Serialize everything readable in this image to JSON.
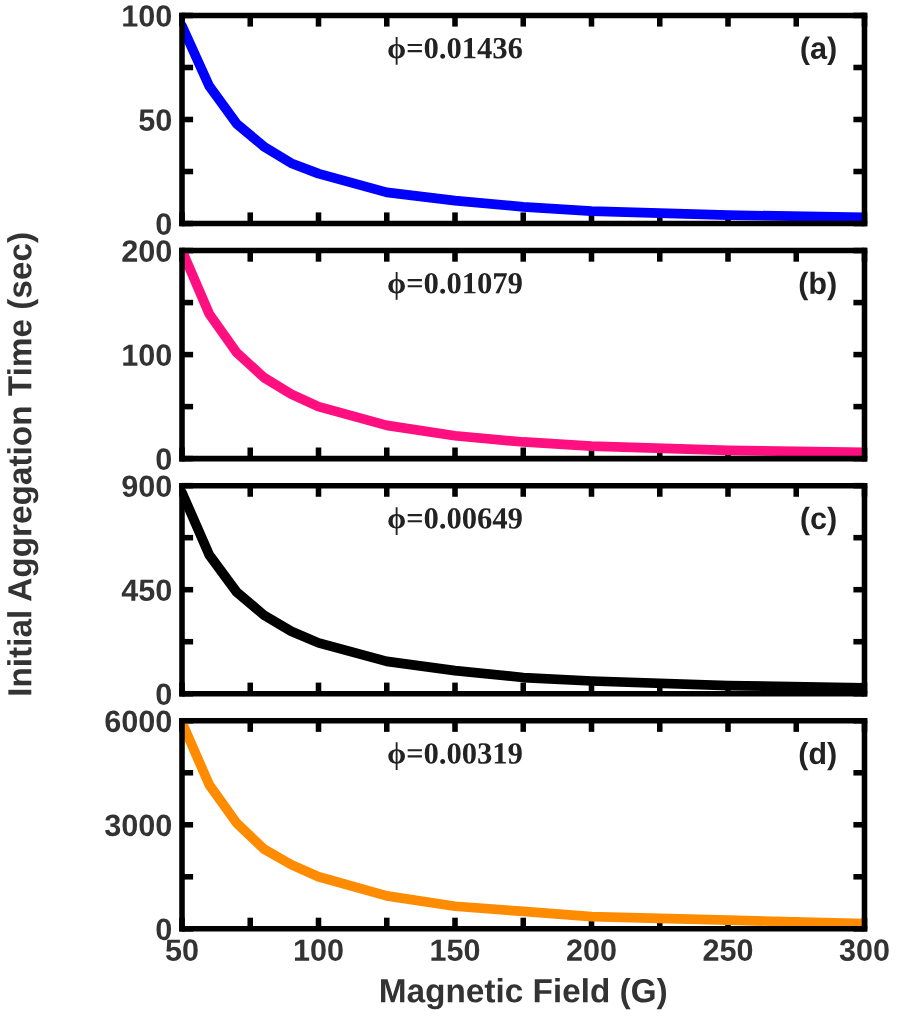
{
  "chart_data": [
    {
      "type": "line",
      "ylabel": "Initial Aggregation Time (sec)",
      "annotations": [
        "ϕ=0.01436",
        "(a)"
      ],
      "x": [
        50,
        60,
        70,
        80,
        90,
        100,
        125,
        150,
        175,
        200,
        250,
        300
      ],
      "series": [
        {
          "color": "#0000ff",
          "values": [
            95,
            66,
            48,
            37,
            29,
            24,
            15,
            11,
            8,
            6,
            4,
            3
          ]
        }
      ],
      "xlim": [
        50,
        300
      ],
      "xticks": [
        {
          "value": 50,
          "label": null
        },
        {
          "value": 75,
          "label": null
        },
        {
          "value": 100,
          "label": null
        },
        {
          "value": 125,
          "label": null
        },
        {
          "value": 150,
          "label": null
        },
        {
          "value": 175,
          "label": null
        },
        {
          "value": 200,
          "label": null
        },
        {
          "value": 225,
          "label": null
        },
        {
          "value": 250,
          "label": null
        },
        {
          "value": 275,
          "label": null
        },
        {
          "value": 300,
          "label": null
        }
      ],
      "ylim": [
        0,
        100
      ],
      "yticks": [
        0,
        {
          "value": 25,
          "label": null
        },
        50,
        {
          "value": 75,
          "label": null
        },
        100
      ],
      "tick_labels": "y"
    },
    {
      "type": "line",
      "annotations": [
        "ϕ=0.01079",
        "(b)"
      ],
      "x": [
        50,
        60,
        70,
        80,
        90,
        100,
        125,
        150,
        175,
        200,
        250,
        300
      ],
      "series": [
        {
          "color": "#ff0f7f",
          "values": [
            200,
            139,
            102,
            78,
            62,
            50,
            32,
            22,
            16,
            12,
            8,
            6
          ]
        }
      ],
      "xlim": [
        50,
        300
      ],
      "xticks": [
        {
          "value": 50,
          "label": null
        },
        {
          "value": 75,
          "label": null
        },
        {
          "value": 100,
          "label": null
        },
        {
          "value": 125,
          "label": null
        },
        {
          "value": 150,
          "label": null
        },
        {
          "value": 175,
          "label": null
        },
        {
          "value": 200,
          "label": null
        },
        {
          "value": 225,
          "label": null
        },
        {
          "value": 250,
          "label": null
        },
        {
          "value": 275,
          "label": null
        },
        {
          "value": 300,
          "label": null
        }
      ],
      "ylim": [
        0,
        200
      ],
      "yticks": [
        0,
        {
          "value": 50,
          "label": null
        },
        100,
        {
          "value": 150,
          "label": null
        },
        200
      ],
      "tick_labels": "y"
    },
    {
      "type": "line",
      "annotations": [
        "ϕ=0.00649",
        "(c)"
      ],
      "x": [
        50,
        60,
        70,
        80,
        90,
        100,
        125,
        150,
        175,
        200,
        250,
        300
      ],
      "series": [
        {
          "color": "#000000",
          "values": [
            870,
            600,
            440,
            340,
            270,
            220,
            140,
            100,
            70,
            55,
            35,
            25
          ]
        }
      ],
      "xlim": [
        50,
        300
      ],
      "xticks": [
        {
          "value": 50,
          "label": null
        },
        {
          "value": 75,
          "label": null
        },
        {
          "value": 100,
          "label": null
        },
        {
          "value": 125,
          "label": null
        },
        {
          "value": 150,
          "label": null
        },
        {
          "value": 175,
          "label": null
        },
        {
          "value": 200,
          "label": null
        },
        {
          "value": 225,
          "label": null
        },
        {
          "value": 250,
          "label": null
        },
        {
          "value": 275,
          "label": null
        },
        {
          "value": 300,
          "label": null
        }
      ],
      "ylim": [
        0,
        900
      ],
      "yticks": [
        0,
        {
          "value": 225,
          "label": null
        },
        450,
        {
          "value": 675,
          "label": null
        },
        900
      ],
      "tick_labels": "y"
    },
    {
      "type": "line",
      "xlabel": "Magnetic Field (G)",
      "annotations": [
        "ϕ=0.00319",
        "(d)"
      ],
      "x": [
        50,
        60,
        70,
        80,
        90,
        100,
        125,
        150,
        175,
        200,
        250,
        300
      ],
      "series": [
        {
          "color": "#ff8c00",
          "values": [
            5950,
            4150,
            3050,
            2300,
            1850,
            1500,
            950,
            650,
            500,
            350,
            250,
            150
          ]
        }
      ],
      "xlim": [
        50,
        300
      ],
      "xticks": [
        50,
        {
          "value": 75,
          "label": null
        },
        100,
        {
          "value": 125,
          "label": null
        },
        150,
        {
          "value": 175,
          "label": null
        },
        200,
        {
          "value": 225,
          "label": null
        },
        250,
        {
          "value": 275,
          "label": null
        },
        300
      ],
      "ylim": [
        0,
        6000
      ],
      "yticks": [
        0,
        {
          "value": 1500,
          "label": null
        },
        3000,
        {
          "value": 4500,
          "label": null
        },
        6000
      ]
    }
  ]
}
